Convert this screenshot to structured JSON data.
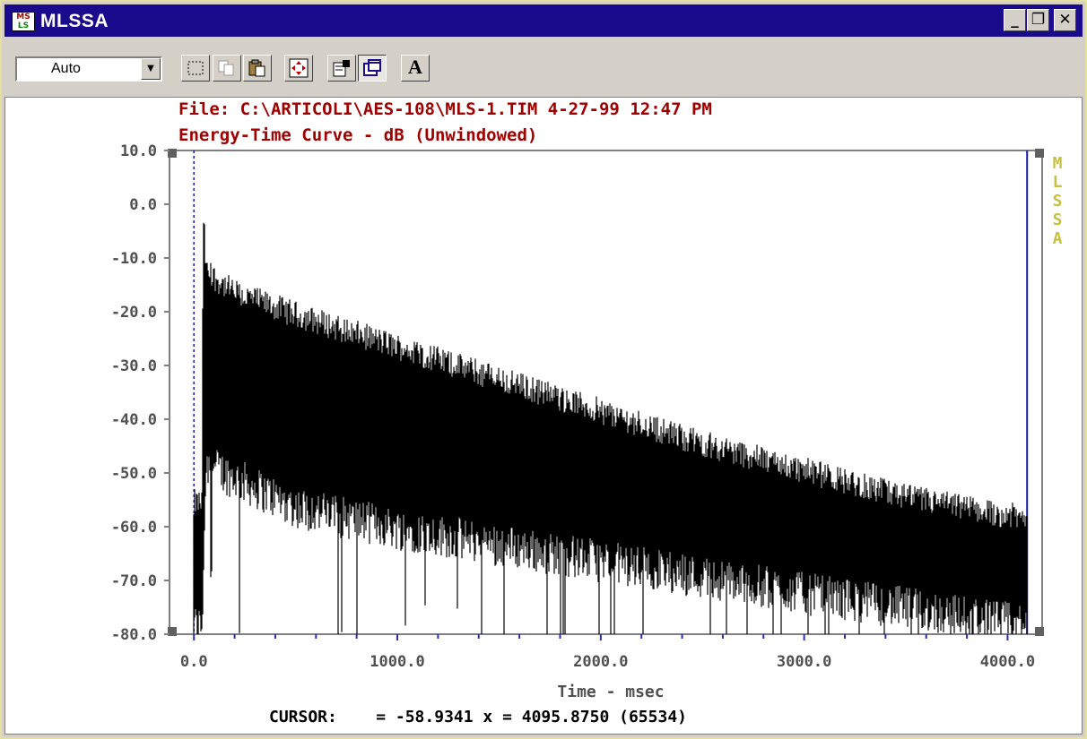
{
  "window": {
    "title": "MLSSA",
    "app_icon_lines": [
      "MS",
      "LS"
    ],
    "controls": [
      "_",
      "❐",
      "✕"
    ]
  },
  "toolbar": {
    "mode_select": "Auto",
    "buttons": [
      "select-region",
      "copy",
      "paste",
      "zoom-fit",
      "properties",
      "window",
      "font"
    ],
    "font_button_label": "A"
  },
  "plot": {
    "file_line": "File: C:\\ARTICOLI\\AES-108\\MLS-1.TIM 4-27-99 12:47 PM",
    "subtitle": "Energy-Time Curve - dB (Unwindowed)",
    "watermark": [
      "M",
      "L",
      "S",
      "S",
      "A"
    ],
    "cursor_readout": "CURSOR:    = -58.9341 x = 4095.8750 (65534)",
    "colors": {
      "title": "#a00000",
      "axis": "#808080",
      "trace": "#000000",
      "cursor": "#1a1aa0",
      "watermark": "#c8c040"
    }
  },
  "chart_data": {
    "type": "line",
    "xlabel": "Time - msec",
    "ylabel": "",
    "xlim": [
      -120,
      4170
    ],
    "ylim": [
      -80,
      10
    ],
    "x_ticks": [
      "0.0",
      "1000.0",
      "2000.0",
      "3000.0",
      "4000.0"
    ],
    "x_tick_values": [
      0,
      1000,
      2000,
      3000,
      4000
    ],
    "y_ticks": [
      "10.0",
      "0.0",
      "-10.0",
      "-20.0",
      "-30.0",
      "-40.0",
      "-50.0",
      "-60.0",
      "-70.0",
      "-80.0"
    ],
    "y_tick_values": [
      10,
      0,
      -10,
      -20,
      -30,
      -40,
      -50,
      -60,
      -70,
      -80
    ],
    "cursor_start_x": 0,
    "cursor_end_x": 4096,
    "series": [
      {
        "envelope_upper_db": [
          [
            0,
            -55
          ],
          [
            40,
            -55
          ],
          [
            45,
            0
          ],
          [
            60,
            -12
          ],
          [
            200,
            -16
          ],
          [
            500,
            -20
          ],
          [
            1000,
            -26
          ],
          [
            1500,
            -32
          ],
          [
            2000,
            -38
          ],
          [
            2500,
            -44
          ],
          [
            3000,
            -49
          ],
          [
            3500,
            -54
          ],
          [
            4096,
            -58
          ]
        ],
        "envelope_lower_db": [
          [
            0,
            -80
          ],
          [
            40,
            -80
          ],
          [
            60,
            -50
          ],
          [
            500,
            -58
          ],
          [
            1000,
            -62
          ],
          [
            2000,
            -68
          ],
          [
            3000,
            -74
          ],
          [
            4096,
            -80
          ]
        ]
      }
    ]
  }
}
